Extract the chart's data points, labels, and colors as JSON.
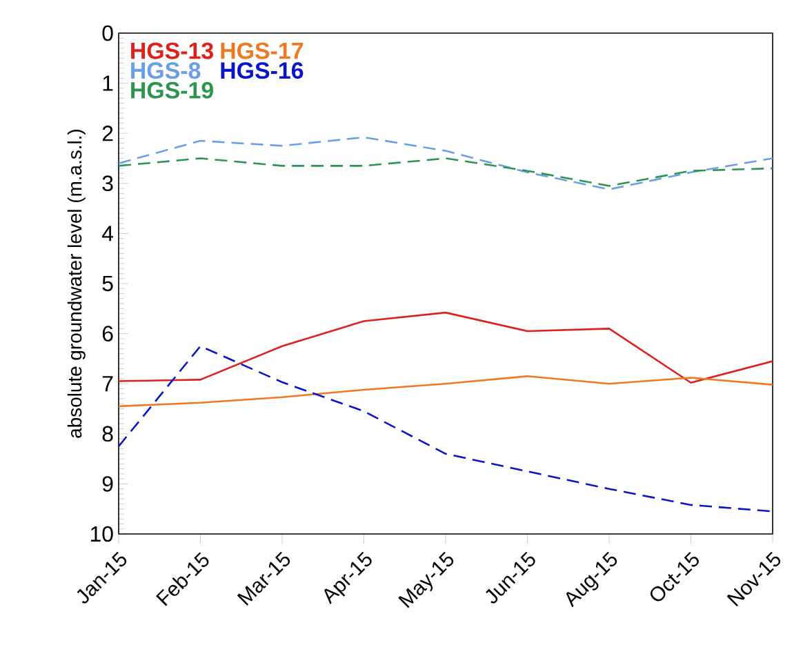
{
  "chart_data": {
    "type": "line",
    "ylabel": "absolute groundwater level (m.a.s.l.)",
    "categories": [
      "Jan-15",
      "Feb-15",
      "Mar-15",
      "Apr-15",
      "May-15",
      "Jun-15",
      "Aug-15",
      "Oct-15",
      "Nov-15"
    ],
    "ylim": [
      10,
      0
    ],
    "yticks": [
      0,
      1,
      2,
      3,
      4,
      5,
      6,
      7,
      8,
      9,
      10
    ],
    "grid": false,
    "legend": "top left",
    "series": [
      {
        "name": "HGS-13",
        "color": "#e0201b",
        "line_style": "solid",
        "values": [
          6.95,
          6.92,
          6.25,
          5.75,
          5.58,
          5.95,
          5.9,
          6.98,
          6.55
        ]
      },
      {
        "name": "HGS-17",
        "color": "#f07820",
        "line_style": "solid",
        "values": [
          7.45,
          7.38,
          7.27,
          7.12,
          7.0,
          6.85,
          7.0,
          6.88,
          7.02
        ]
      },
      {
        "name": "HGS-8",
        "color": "#6a9ee6",
        "line_style": "dashed",
        "values": [
          2.6,
          2.15,
          2.25,
          2.08,
          2.35,
          2.78,
          3.12,
          2.78,
          2.5
        ]
      },
      {
        "name": "HGS-16",
        "color": "#0a14c8",
        "line_style": "dashed",
        "values": [
          8.25,
          6.25,
          6.97,
          7.55,
          8.4,
          8.75,
          9.1,
          9.42,
          9.55
        ]
      },
      {
        "name": "HGS-19",
        "color": "#2e9550",
        "line_style": "dashed",
        "values": [
          2.65,
          2.5,
          2.65,
          2.65,
          2.5,
          2.75,
          3.05,
          2.75,
          2.7
        ]
      }
    ]
  }
}
